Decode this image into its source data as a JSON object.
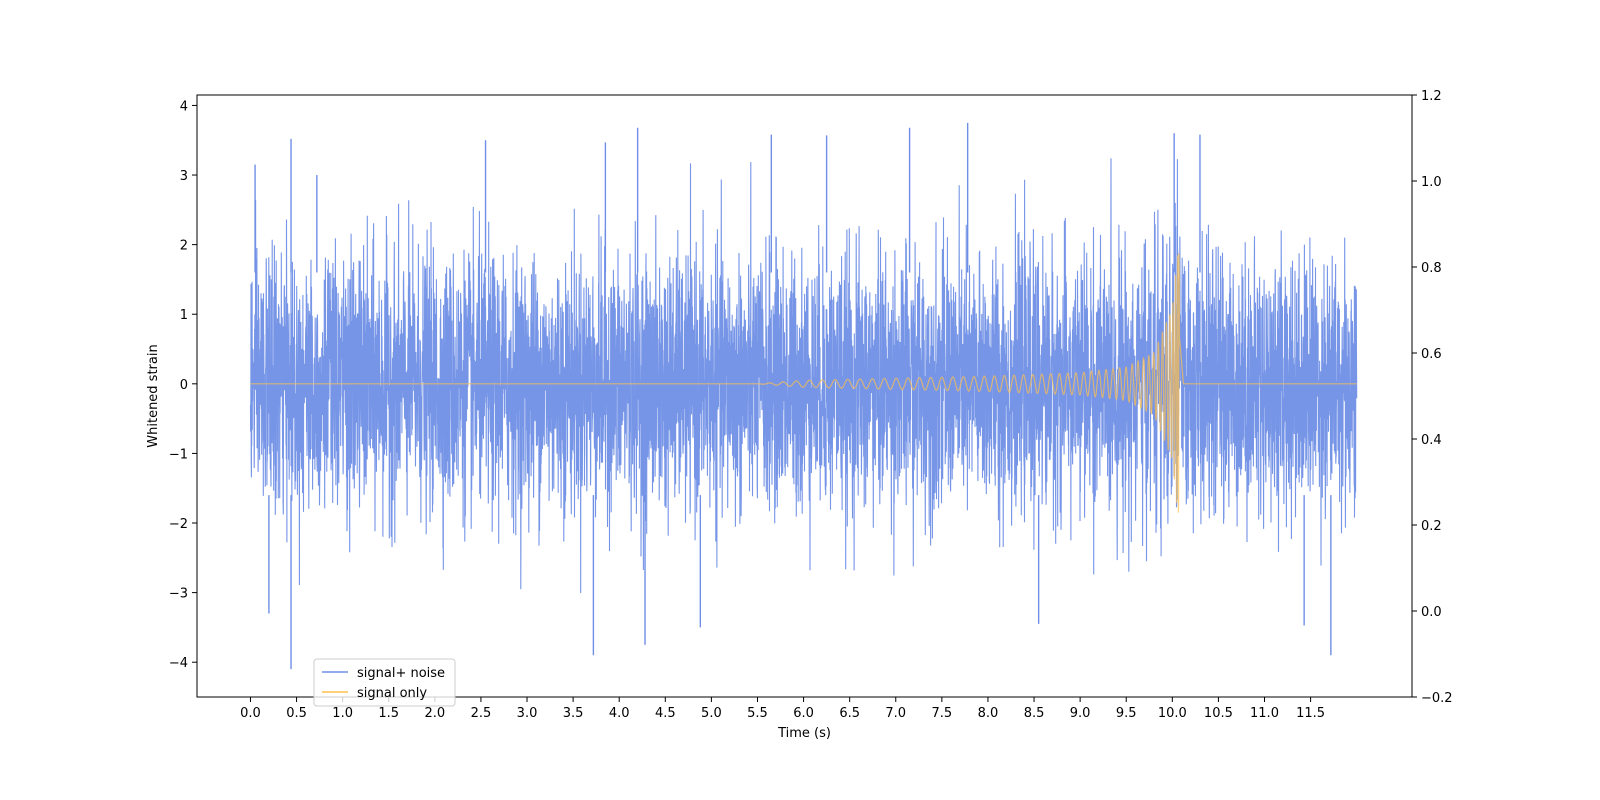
{
  "chart_data": {
    "type": "line",
    "title": "",
    "xlabel": "Time (s)",
    "ylabel": "Whitened strain",
    "xlim": [
      -0.58,
      12.6
    ],
    "ylim": [
      -4.5,
      4.15
    ],
    "y2lim": [
      -0.2,
      1.2
    ],
    "xticks": [
      0.0,
      0.5,
      1.0,
      1.5,
      2.0,
      2.5,
      3.0,
      3.5,
      4.0,
      4.5,
      5.0,
      5.5,
      6.0,
      6.5,
      7.0,
      7.5,
      8.0,
      8.5,
      9.0,
      9.5,
      10.0,
      10.5,
      11.0,
      11.5
    ],
    "xtick_labels": [
      "0.0",
      "0.5",
      "1.0",
      "1.5",
      "2.0",
      "2.5",
      "3.0",
      "3.5",
      "4.0",
      "4.5",
      "5.0",
      "5.5",
      "6.0",
      "6.5",
      "7.0",
      "7.5",
      "8.0",
      "8.5",
      "9.0",
      "9.5",
      "10.0",
      "10.5",
      "11.0",
      "11.5"
    ],
    "yticks": [
      -4,
      -3,
      -2,
      -1,
      0,
      1,
      2,
      3,
      4
    ],
    "ytick_labels": [
      "−4",
      "−3",
      "−2",
      "−1",
      "0",
      "1",
      "2",
      "3",
      "4"
    ],
    "y2ticks": [
      -0.2,
      0.0,
      0.2,
      0.4,
      0.6,
      0.8,
      1.0,
      1.2
    ],
    "y2tick_labels": [
      "−0.2",
      "0.0",
      "0.2",
      "0.4",
      "0.6",
      "0.8",
      "1.0",
      "1.2"
    ],
    "grid": false,
    "legend_position": "lower-left",
    "series": [
      {
        "name": "signal+ noise",
        "color": "#6f8fe6",
        "t_range": [
          0.0,
          12.0
        ],
        "typical_envelope": [
          -2.4,
          2.4
        ],
        "max": 3.75,
        "min": -4.1,
        "peaks": [
          {
            "x": 0.05,
            "y": 3.15
          },
          {
            "x": 0.44,
            "y": 3.52
          },
          {
            "x": 0.72,
            "y": 3.0
          },
          {
            "x": 2.55,
            "y": 3.5
          },
          {
            "x": 3.85,
            "y": 3.47
          },
          {
            "x": 4.2,
            "y": 3.68
          },
          {
            "x": 5.65,
            "y": 3.58
          },
          {
            "x": 6.25,
            "y": 3.57
          },
          {
            "x": 7.15,
            "y": 3.68
          },
          {
            "x": 7.78,
            "y": 3.75
          },
          {
            "x": 10.02,
            "y": 3.6
          },
          {
            "x": 10.3,
            "y": 3.58
          }
        ],
        "troughs": [
          {
            "x": 0.44,
            "y": -4.1
          },
          {
            "x": 0.2,
            "y": -3.3
          },
          {
            "x": 3.72,
            "y": -3.9
          },
          {
            "x": 4.28,
            "y": -3.75
          },
          {
            "x": 4.88,
            "y": -3.5
          },
          {
            "x": 11.43,
            "y": -3.47
          },
          {
            "x": 11.72,
            "y": -3.9
          },
          {
            "x": 8.55,
            "y": -3.45
          }
        ]
      },
      {
        "name": "signal only",
        "color": "#ffc04d",
        "t_range": [
          0.0,
          12.0
        ],
        "chirp": {
          "start_visible": 5.5,
          "merger_time": 10.08,
          "points": [
            {
              "x": 5.5,
              "y": 0.0
            },
            {
              "x": 6.0,
              "y": 0.05
            },
            {
              "x": 7.0,
              "y": 0.08
            },
            {
              "x": 8.0,
              "y": 0.11
            },
            {
              "x": 9.0,
              "y": 0.16
            },
            {
              "x": 9.5,
              "y": 0.24
            },
            {
              "x": 9.8,
              "y": 0.45
            },
            {
              "x": 10.0,
              "y": 1.1
            },
            {
              "x": 10.08,
              "y": 2.2
            },
            {
              "x": 10.12,
              "y": 0.0
            }
          ]
        }
      }
    ]
  }
}
